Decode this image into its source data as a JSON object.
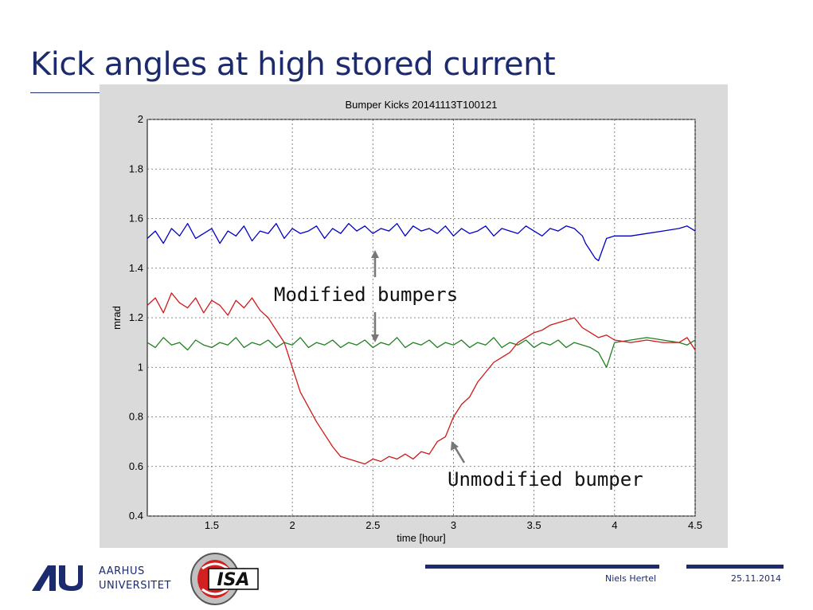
{
  "slide": {
    "title": "Kick angles at high stored current",
    "footer": {
      "university_line1": "AARHUS",
      "university_line2": "UNIVERSITET",
      "isa_logo_text": "ISA",
      "author": "Niels Hertel",
      "date": "25.11.2014"
    },
    "annotations": [
      {
        "text": "Modified bumpers"
      },
      {
        "text": "Unmodified bumper"
      }
    ],
    "colors": {
      "title": "#1c2a6e",
      "frame": "#dadada"
    }
  },
  "chart_data": {
    "type": "line",
    "title": "Bumper Kicks 20141113T100121",
    "xlabel": "time [hour]",
    "ylabel": "mrad",
    "xlim": [
      1.1,
      4.5
    ],
    "ylim": [
      0.4,
      2.0
    ],
    "xticks": [
      "1.5",
      "2",
      "2.5",
      "3",
      "3.5",
      "4",
      "4.5"
    ],
    "xtick_values": [
      1.5,
      2,
      2.5,
      3,
      3.5,
      4,
      4.5
    ],
    "yticks": [
      "0.4",
      "0.6",
      "0.8",
      "1",
      "1.2",
      "1.4",
      "1.6",
      "1.8",
      "2"
    ],
    "ytick_values": [
      0.4,
      0.6,
      0.8,
      1.0,
      1.2,
      1.4,
      1.6,
      1.8,
      2.0
    ],
    "grid": true,
    "series": [
      {
        "color": "#0000c8",
        "x": [
          1.1,
          1.15,
          1.2,
          1.25,
          1.3,
          1.35,
          1.4,
          1.45,
          1.5,
          1.55,
          1.6,
          1.65,
          1.7,
          1.75,
          1.8,
          1.85,
          1.9,
          1.95,
          2.0,
          2.05,
          2.1,
          2.15,
          2.2,
          2.25,
          2.3,
          2.35,
          2.4,
          2.45,
          2.5,
          2.55,
          2.6,
          2.65,
          2.7,
          2.75,
          2.8,
          2.85,
          2.9,
          2.95,
          3.0,
          3.05,
          3.1,
          3.15,
          3.2,
          3.25,
          3.3,
          3.35,
          3.4,
          3.45,
          3.5,
          3.55,
          3.6,
          3.65,
          3.7,
          3.75,
          3.8,
          3.82,
          3.85,
          3.88,
          3.9,
          3.95,
          4.0,
          4.1,
          4.2,
          4.3,
          4.4,
          4.45,
          4.5
        ],
        "y": [
          1.52,
          1.55,
          1.5,
          1.56,
          1.53,
          1.58,
          1.52,
          1.54,
          1.56,
          1.5,
          1.55,
          1.53,
          1.57,
          1.51,
          1.55,
          1.54,
          1.58,
          1.52,
          1.56,
          1.54,
          1.55,
          1.57,
          1.52,
          1.56,
          1.54,
          1.58,
          1.55,
          1.57,
          1.54,
          1.56,
          1.55,
          1.58,
          1.53,
          1.57,
          1.55,
          1.56,
          1.54,
          1.57,
          1.53,
          1.56,
          1.54,
          1.55,
          1.57,
          1.53,
          1.56,
          1.55,
          1.54,
          1.57,
          1.55,
          1.53,
          1.56,
          1.55,
          1.57,
          1.56,
          1.53,
          1.5,
          1.47,
          1.44,
          1.43,
          1.52,
          1.53,
          1.53,
          1.54,
          1.55,
          1.56,
          1.57,
          1.55
        ]
      },
      {
        "color": "#208020",
        "x": [
          1.1,
          1.15,
          1.2,
          1.25,
          1.3,
          1.35,
          1.4,
          1.45,
          1.5,
          1.55,
          1.6,
          1.65,
          1.7,
          1.75,
          1.8,
          1.85,
          1.9,
          1.95,
          2.0,
          2.05,
          2.1,
          2.15,
          2.2,
          2.25,
          2.3,
          2.35,
          2.4,
          2.45,
          2.5,
          2.55,
          2.6,
          2.65,
          2.7,
          2.75,
          2.8,
          2.85,
          2.9,
          2.95,
          3.0,
          3.05,
          3.1,
          3.15,
          3.2,
          3.25,
          3.3,
          3.35,
          3.4,
          3.45,
          3.5,
          3.55,
          3.6,
          3.65,
          3.7,
          3.75,
          3.8,
          3.85,
          3.9,
          3.95,
          4.0,
          4.1,
          4.2,
          4.3,
          4.4,
          4.45,
          4.5
        ],
        "y": [
          1.1,
          1.08,
          1.12,
          1.09,
          1.1,
          1.07,
          1.11,
          1.09,
          1.08,
          1.1,
          1.09,
          1.12,
          1.08,
          1.1,
          1.09,
          1.11,
          1.08,
          1.1,
          1.09,
          1.12,
          1.08,
          1.1,
          1.09,
          1.11,
          1.08,
          1.1,
          1.09,
          1.11,
          1.08,
          1.1,
          1.09,
          1.12,
          1.08,
          1.1,
          1.09,
          1.11,
          1.08,
          1.1,
          1.09,
          1.11,
          1.08,
          1.1,
          1.09,
          1.12,
          1.08,
          1.1,
          1.09,
          1.11,
          1.08,
          1.1,
          1.09,
          1.11,
          1.08,
          1.1,
          1.09,
          1.08,
          1.06,
          1.0,
          1.1,
          1.11,
          1.12,
          1.11,
          1.1,
          1.09,
          1.11
        ]
      },
      {
        "color": "#d01818",
        "x": [
          1.1,
          1.15,
          1.2,
          1.25,
          1.3,
          1.35,
          1.4,
          1.45,
          1.5,
          1.55,
          1.6,
          1.65,
          1.7,
          1.75,
          1.8,
          1.85,
          1.9,
          1.95,
          2.0,
          2.05,
          2.1,
          2.15,
          2.2,
          2.25,
          2.3,
          2.35,
          2.4,
          2.45,
          2.5,
          2.55,
          2.6,
          2.65,
          2.7,
          2.75,
          2.8,
          2.85,
          2.9,
          2.95,
          3.0,
          3.05,
          3.1,
          3.15,
          3.2,
          3.25,
          3.3,
          3.35,
          3.4,
          3.45,
          3.5,
          3.55,
          3.6,
          3.65,
          3.7,
          3.75,
          3.8,
          3.85,
          3.9,
          3.95,
          4.0,
          4.1,
          4.2,
          4.3,
          4.4,
          4.45,
          4.5
        ],
        "y": [
          1.25,
          1.28,
          1.22,
          1.3,
          1.26,
          1.24,
          1.28,
          1.22,
          1.27,
          1.25,
          1.21,
          1.27,
          1.24,
          1.28,
          1.23,
          1.2,
          1.15,
          1.1,
          1.0,
          0.9,
          0.84,
          0.78,
          0.73,
          0.68,
          0.64,
          0.63,
          0.62,
          0.61,
          0.63,
          0.62,
          0.64,
          0.63,
          0.65,
          0.63,
          0.66,
          0.65,
          0.7,
          0.72,
          0.8,
          0.85,
          0.88,
          0.94,
          0.98,
          1.02,
          1.04,
          1.06,
          1.1,
          1.12,
          1.14,
          1.15,
          1.17,
          1.18,
          1.19,
          1.2,
          1.16,
          1.14,
          1.12,
          1.13,
          1.11,
          1.1,
          1.11,
          1.1,
          1.1,
          1.12,
          1.07
        ]
      }
    ]
  }
}
